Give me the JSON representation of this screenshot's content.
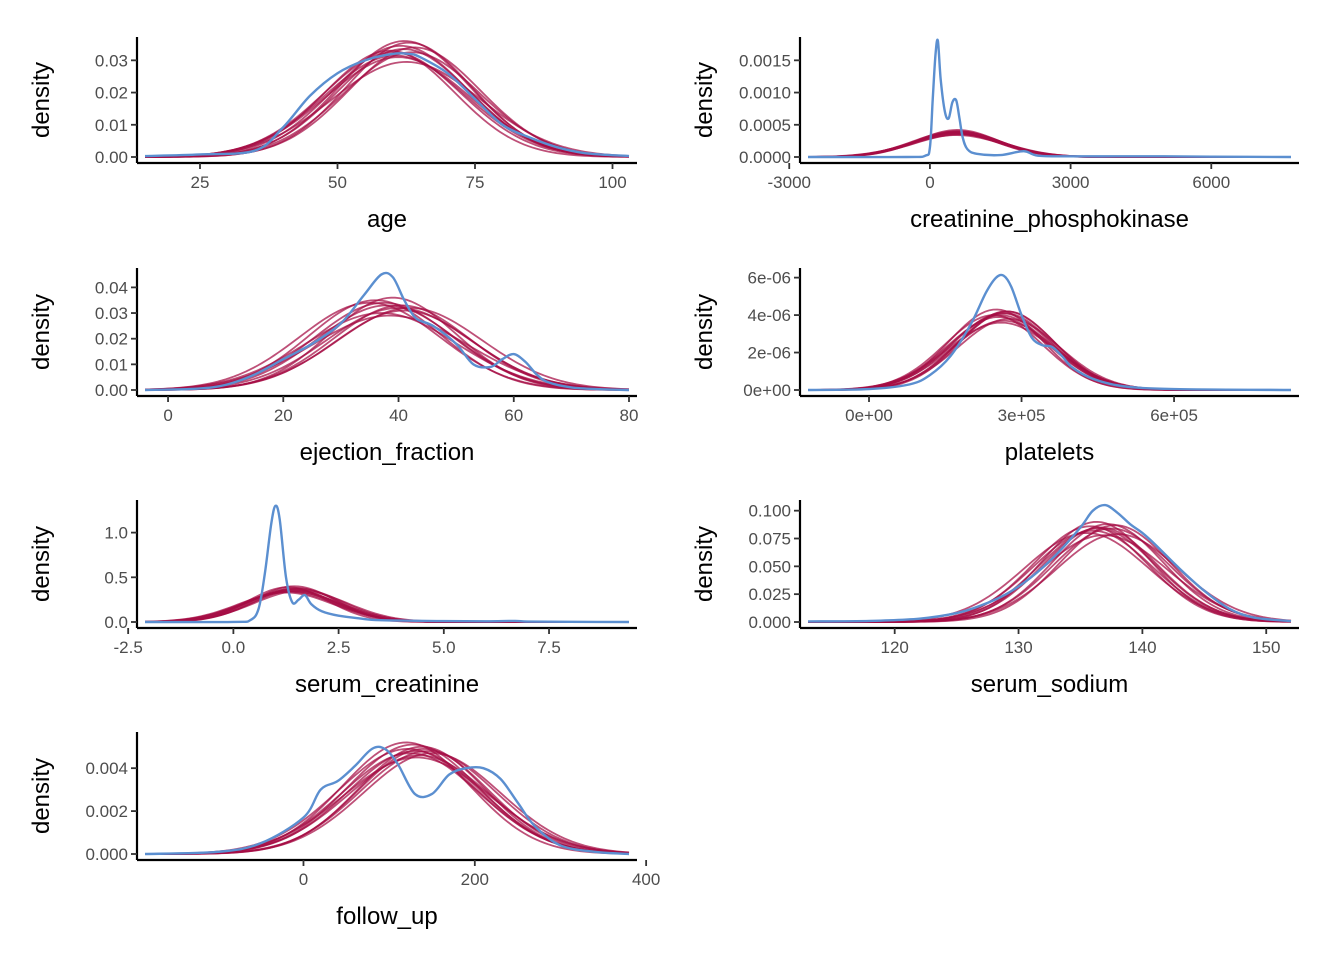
{
  "colors": {
    "observed": "#5b8fd0",
    "replicated": "#a50d44"
  },
  "chart_data": [
    {
      "type": "line",
      "title": "",
      "xlabel": "age",
      "ylabel": "density",
      "xlim": [
        15,
        103
      ],
      "ylim": [
        0,
        0.036
      ],
      "xticks": [
        25,
        50,
        75,
        100
      ],
      "xtick_labels": [
        "25",
        "50",
        "75",
        "100"
      ],
      "yticks": [
        0,
        0.01,
        0.02,
        0.03
      ],
      "ytick_labels": [
        "0.00",
        "0.01",
        "0.02",
        "0.03"
      ],
      "observed": {
        "x": [
          15,
          25,
          35,
          40,
          45,
          50,
          55,
          60,
          63,
          65,
          70,
          75,
          80,
          85,
          90,
          95,
          103
        ],
        "y": [
          0.0003,
          0.0008,
          0.002,
          0.009,
          0.019,
          0.026,
          0.03,
          0.032,
          0.032,
          0.031,
          0.026,
          0.018,
          0.01,
          0.006,
          0.003,
          0.0012,
          0.0003
        ]
      },
      "replicates": [
        {
          "mean": 62,
          "sd": 12,
          "peak": 0.0335
        },
        {
          "mean": 60,
          "sd": 12.5,
          "peak": 0.0325
        },
        {
          "mean": 63,
          "sd": 11.5,
          "peak": 0.0355
        },
        {
          "mean": 61,
          "sd": 13,
          "peak": 0.031
        },
        {
          "mean": 64,
          "sd": 12,
          "peak": 0.034
        },
        {
          "mean": 59.5,
          "sd": 11.8,
          "peak": 0.033
        },
        {
          "mean": 62.5,
          "sd": 13.5,
          "peak": 0.0295
        },
        {
          "mean": 61.5,
          "sd": 12.2,
          "peak": 0.0345
        },
        {
          "mean": 60.5,
          "sd": 12.8,
          "peak": 0.0315
        },
        {
          "mean": 63.5,
          "sd": 12.4,
          "peak": 0.0325
        },
        {
          "mean": 62.2,
          "sd": 11.9,
          "peak": 0.036
        }
      ]
    },
    {
      "type": "line",
      "title": "",
      "xlabel": "creatinine_phosphokinase",
      "ylabel": "density",
      "xlim": [
        -2600,
        7700
      ],
      "ylim": [
        0,
        0.0018
      ],
      "xticks": [
        -3000,
        0,
        3000,
        6000
      ],
      "xtick_labels": [
        "-3000",
        "0",
        "3000",
        "6000"
      ],
      "yticks": [
        0,
        0.0005,
        0.001,
        0.0015
      ],
      "ytick_labels": [
        "0.0000",
        "0.0005",
        "0.0010",
        "0.0015"
      ],
      "observed": {
        "x": [
          -2600,
          -500,
          -100,
          0,
          60,
          120,
          170,
          230,
          320,
          400,
          480,
          560,
          630,
          700,
          800,
          1000,
          1500,
          2000,
          2300,
          3000,
          4000,
          5000,
          6000,
          7700
        ],
        "y": [
          0,
          0,
          2e-05,
          0.00015,
          0.0009,
          0.0016,
          0.0018,
          0.0012,
          0.0007,
          0.0006,
          0.00085,
          0.00088,
          0.0006,
          0.0003,
          0.00012,
          5e-05,
          3e-05,
          9e-05,
          2e-05,
          1e-05,
          1e-05,
          1e-05,
          5e-06,
          0
        ]
      },
      "replicates": [
        {
          "mean": 580,
          "sd": 900,
          "peak": 0.00038
        },
        {
          "mean": 550,
          "sd": 950,
          "peak": 0.00036
        },
        {
          "mean": 610,
          "sd": 880,
          "peak": 0.0004
        },
        {
          "mean": 520,
          "sd": 920,
          "peak": 0.00037
        },
        {
          "mean": 640,
          "sd": 960,
          "peak": 0.00035
        },
        {
          "mean": 590,
          "sd": 870,
          "peak": 0.00042
        },
        {
          "mean": 560,
          "sd": 990,
          "peak": 0.00034
        },
        {
          "mean": 600,
          "sd": 910,
          "peak": 0.00039
        },
        {
          "mean": 530,
          "sd": 890,
          "peak": 0.00038
        },
        {
          "mean": 620,
          "sd": 940,
          "peak": 0.00036
        },
        {
          "mean": 570,
          "sd": 930,
          "peak": 0.0004
        }
      ]
    },
    {
      "type": "line",
      "title": "",
      "xlabel": "ejection_fraction",
      "ylabel": "density",
      "xlim": [
        -4,
        80
      ],
      "ylim": [
        0,
        0.046
      ],
      "xticks": [
        0,
        20,
        40,
        60,
        80
      ],
      "xtick_labels": [
        "0",
        "20",
        "40",
        "60",
        "80"
      ],
      "yticks": [
        0,
        0.01,
        0.02,
        0.03,
        0.04
      ],
      "ytick_labels": [
        "0.00",
        "0.01",
        "0.02",
        "0.03",
        "0.04"
      ],
      "observed": {
        "x": [
          -4,
          5,
          10,
          15,
          20,
          25,
          30,
          34,
          37,
          39,
          41,
          43,
          46,
          50,
          53,
          56,
          58,
          60,
          62,
          64,
          66,
          70,
          75,
          80
        ],
        "y": [
          0,
          0.0005,
          0.002,
          0.006,
          0.012,
          0.018,
          0.026,
          0.037,
          0.045,
          0.044,
          0.035,
          0.028,
          0.025,
          0.018,
          0.01,
          0.009,
          0.012,
          0.014,
          0.011,
          0.006,
          0.003,
          0.001,
          0.0003,
          0
        ]
      },
      "replicates": [
        {
          "mean": 38,
          "sd": 12,
          "peak": 0.033
        },
        {
          "mean": 36,
          "sd": 11.5,
          "peak": 0.035
        },
        {
          "mean": 40,
          "sd": 12.5,
          "peak": 0.032
        },
        {
          "mean": 37,
          "sd": 13,
          "peak": 0.03
        },
        {
          "mean": 39,
          "sd": 11,
          "peak": 0.036
        },
        {
          "mean": 41,
          "sd": 12,
          "peak": 0.031
        },
        {
          "mean": 35,
          "sd": 12.2,
          "peak": 0.034
        },
        {
          "mean": 38.5,
          "sd": 13.5,
          "peak": 0.029
        },
        {
          "mean": 40.5,
          "sd": 11.8,
          "peak": 0.033
        },
        {
          "mean": 42,
          "sd": 12.5,
          "peak": 0.032
        },
        {
          "mean": 37.5,
          "sd": 12,
          "peak": 0.034
        }
      ]
    },
    {
      "type": "line",
      "title": "",
      "xlabel": "platelets",
      "ylabel": "density",
      "xlim": [
        -120000,
        830000
      ],
      "ylim": [
        0,
        6.3e-06
      ],
      "xticks": [
        0,
        300000,
        600000
      ],
      "xtick_labels": [
        "0e+00",
        "3e+05",
        "6e+05"
      ],
      "yticks": [
        0,
        2e-06,
        4e-06,
        6e-06
      ],
      "ytick_labels": [
        "0e+00",
        "2e-06",
        "4e-06",
        "6e-06"
      ],
      "observed": {
        "x": [
          -120000,
          0,
          80000,
          120000,
          160000,
          200000,
          230000,
          250000,
          265000,
          280000,
          300000,
          320000,
          340000,
          360000,
          380000,
          400000,
          440000,
          500000,
          600000,
          830000
        ],
        "y": [
          0,
          5e-08,
          3e-07,
          8e-07,
          1.8e-06,
          3.5e-06,
          5.2e-06,
          6e-06,
          6.1e-06,
          5.5e-06,
          4e-06,
          2.8e-06,
          2.4e-06,
          2.3e-06,
          1.8e-06,
          1.2e-06,
          6e-07,
          2e-07,
          5e-08,
          0
        ]
      },
      "replicates": [
        {
          "mean": 262000,
          "sd": 97000,
          "peak": 4.1e-06
        },
        {
          "mean": 255000,
          "sd": 100000,
          "peak": 3.9e-06
        },
        {
          "mean": 270000,
          "sd": 95000,
          "peak": 4.2e-06
        },
        {
          "mean": 250000,
          "sd": 92000,
          "peak": 4.3e-06
        },
        {
          "mean": 265000,
          "sd": 102000,
          "peak": 3.7e-06
        },
        {
          "mean": 258000,
          "sd": 98000,
          "peak": 4e-06
        },
        {
          "mean": 275000,
          "sd": 99000,
          "peak": 3.8e-06
        },
        {
          "mean": 268000,
          "sd": 94000,
          "peak": 4.1e-06
        },
        {
          "mean": 245000,
          "sd": 96000,
          "peak": 4e-06
        },
        {
          "mean": 260000,
          "sd": 105000,
          "peak": 3.6e-06
        },
        {
          "mean": 272000,
          "sd": 93000,
          "peak": 4.2e-06
        }
      ]
    },
    {
      "type": "line",
      "title": "",
      "xlabel": "serum_creatinine",
      "ylabel": "density",
      "xlim": [
        -2.1,
        9.4
      ],
      "ylim": [
        0,
        1.32
      ],
      "xticks": [
        -2.5,
        0,
        2.5,
        5,
        7.5
      ],
      "xtick_labels": [
        "-2.5",
        "0.0",
        "2.5",
        "5.0",
        "7.5"
      ],
      "yticks": [
        0,
        0.5,
        1
      ],
      "ytick_labels": [
        "0.0",
        "0.5",
        "1.0"
      ],
      "observed": {
        "x": [
          -2.1,
          0,
          0.4,
          0.6,
          0.75,
          0.9,
          1.0,
          1.1,
          1.25,
          1.4,
          1.55,
          1.7,
          1.85,
          2.1,
          2.5,
          3,
          3.5,
          5,
          6,
          6.7,
          7,
          8,
          9.4
        ],
        "y": [
          0,
          0.001,
          0.02,
          0.15,
          0.55,
          1.1,
          1.3,
          1.15,
          0.5,
          0.22,
          0.25,
          0.3,
          0.2,
          0.12,
          0.07,
          0.04,
          0.02,
          0.01,
          0.008,
          0.012,
          0.005,
          0.002,
          0
        ]
      },
      "replicates": [
        {
          "mean": 1.4,
          "sd": 1.05,
          "peak": 0.36
        },
        {
          "mean": 1.3,
          "sd": 1.1,
          "peak": 0.34
        },
        {
          "mean": 1.5,
          "sd": 1.0,
          "peak": 0.38
        },
        {
          "mean": 1.35,
          "sd": 1.08,
          "peak": 0.35
        },
        {
          "mean": 1.45,
          "sd": 0.98,
          "peak": 0.4
        },
        {
          "mean": 1.25,
          "sd": 1.12,
          "peak": 0.33
        },
        {
          "mean": 1.55,
          "sd": 1.05,
          "peak": 0.37
        },
        {
          "mean": 1.4,
          "sd": 1.15,
          "peak": 0.34
        },
        {
          "mean": 1.3,
          "sd": 0.95,
          "peak": 0.39
        },
        {
          "mean": 1.6,
          "sd": 1.1,
          "peak": 0.35
        },
        {
          "mean": 1.38,
          "sd": 1.02,
          "peak": 0.37
        }
      ]
    },
    {
      "type": "line",
      "title": "",
      "xlabel": "serum_sodium",
      "ylabel": "density",
      "xlim": [
        113,
        152
      ],
      "ylim": [
        0,
        0.106
      ],
      "xticks": [
        120,
        130,
        140,
        150
      ],
      "xtick_labels": [
        "120",
        "130",
        "140",
        "150"
      ],
      "yticks": [
        0,
        0.025,
        0.05,
        0.075,
        0.1
      ],
      "ytick_labels": [
        "0.000",
        "0.025",
        "0.050",
        "0.075",
        "0.100"
      ],
      "observed": {
        "x": [
          113,
          118,
          122,
          125,
          127,
          129,
          131,
          133,
          135,
          136,
          137,
          138,
          139,
          140,
          141,
          143,
          145,
          147,
          149,
          152
        ],
        "y": [
          0.0005,
          0.001,
          0.003,
          0.008,
          0.015,
          0.025,
          0.04,
          0.06,
          0.085,
          0.1,
          0.105,
          0.098,
          0.088,
          0.08,
          0.07,
          0.048,
          0.028,
          0.012,
          0.004,
          0.0008
        ]
      },
      "replicates": [
        {
          "mean": 136.6,
          "sd": 4.6,
          "peak": 0.085
        },
        {
          "mean": 136.0,
          "sd": 4.8,
          "peak": 0.082
        },
        {
          "mean": 137.2,
          "sd": 4.5,
          "peak": 0.088
        },
        {
          "mean": 135.5,
          "sd": 5.0,
          "peak": 0.08
        },
        {
          "mean": 137.5,
          "sd": 4.7,
          "peak": 0.084
        },
        {
          "mean": 136.3,
          "sd": 4.4,
          "peak": 0.09
        },
        {
          "mean": 138.0,
          "sd": 4.9,
          "peak": 0.079
        },
        {
          "mean": 135.8,
          "sd": 4.6,
          "peak": 0.086
        },
        {
          "mean": 136.9,
          "sd": 5.1,
          "peak": 0.078
        },
        {
          "mean": 137.8,
          "sd": 4.5,
          "peak": 0.087
        },
        {
          "mean": 136.4,
          "sd": 4.7,
          "peak": 0.084
        }
      ]
    },
    {
      "type": "line",
      "title": "",
      "xlabel": "follow_up",
      "ylabel": "density",
      "xlim": [
        -185,
        380
      ],
      "ylim": [
        0,
        0.0055
      ],
      "xticks": [
        0,
        200,
        400
      ],
      "xtick_labels": [
        "0",
        "200",
        "400"
      ],
      "yticks": [
        0,
        0.002,
        0.004
      ],
      "ytick_labels": [
        "0.000",
        "0.002",
        "0.004"
      ],
      "observed": {
        "x": [
          -185,
          -100,
          -50,
          0,
          20,
          40,
          60,
          80,
          95,
          110,
          130,
          150,
          170,
          190,
          210,
          230,
          250,
          270,
          300,
          340,
          380
        ],
        "y": [
          0,
          0.0001,
          0.0005,
          0.0017,
          0.003,
          0.0034,
          0.0041,
          0.0049,
          0.0049,
          0.0042,
          0.0028,
          0.0028,
          0.0037,
          0.004,
          0.004,
          0.0035,
          0.0024,
          0.0013,
          0.0004,
          0.0001,
          0
        ]
      },
      "replicates": [
        {
          "mean": 130,
          "sd": 78,
          "peak": 0.0048
        },
        {
          "mean": 125,
          "sd": 80,
          "peak": 0.0047
        },
        {
          "mean": 140,
          "sd": 76,
          "peak": 0.0049
        },
        {
          "mean": 120,
          "sd": 75,
          "peak": 0.0052
        },
        {
          "mean": 135,
          "sd": 82,
          "peak": 0.0046
        },
        {
          "mean": 145,
          "sd": 79,
          "peak": 0.0048
        },
        {
          "mean": 128,
          "sd": 77,
          "peak": 0.0051
        },
        {
          "mean": 150,
          "sd": 80,
          "peak": 0.0047
        },
        {
          "mean": 132,
          "sd": 85,
          "peak": 0.0045
        },
        {
          "mean": 138,
          "sd": 74,
          "peak": 0.005
        },
        {
          "mean": 122,
          "sd": 81,
          "peak": 0.0049
        }
      ]
    }
  ]
}
